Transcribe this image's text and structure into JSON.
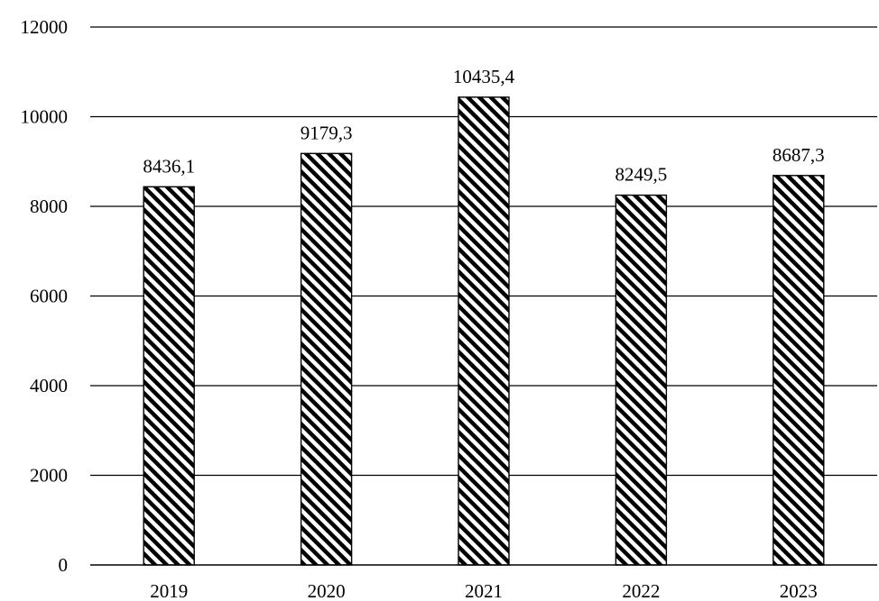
{
  "chart_data": {
    "type": "bar",
    "categories": [
      "2019",
      "2020",
      "2021",
      "2022",
      "2023"
    ],
    "values": [
      8436.1,
      9179.3,
      10435.4,
      8249.5,
      8687.3
    ],
    "data_labels": [
      "8436,1",
      "9179,3",
      "10435,4",
      "8249,5",
      "8687,3"
    ],
    "title": "",
    "xlabel": "",
    "ylabel": "",
    "ylim": [
      0,
      12000
    ],
    "yticks": [
      0,
      2000,
      4000,
      6000,
      8000,
      10000,
      12000
    ],
    "ytick_labels": [
      "0",
      "2000",
      "4000",
      "6000",
      "8000",
      "10000",
      "12000"
    ],
    "grid": true,
    "legend": "none",
    "bar_fill": "diagonal-hatch",
    "colors": {
      "bar_stroke": "#000000",
      "hatch": "#000000",
      "background": "#ffffff",
      "grid": "#000000"
    }
  }
}
